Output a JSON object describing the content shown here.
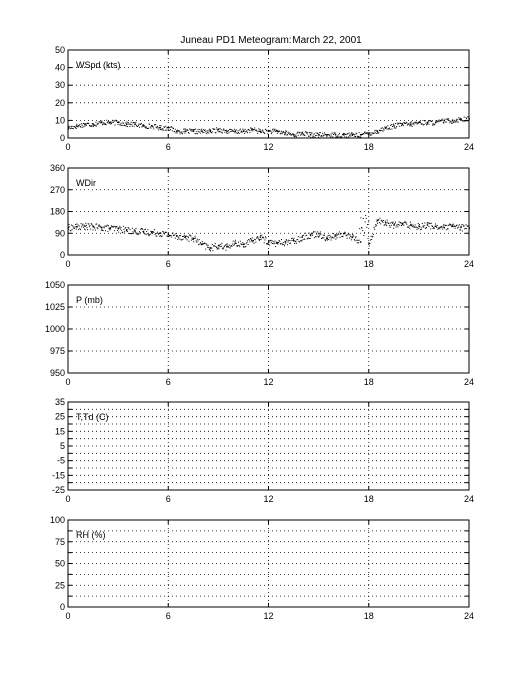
{
  "title": "Juneau PD1 Meteogram:",
  "date": "March 22, 2001",
  "chart_data": [
    {
      "type": "scatter",
      "label": "WSpd (kts)",
      "x_range": [
        0,
        24
      ],
      "x_ticks": [
        "0",
        "6",
        "12",
        "18",
        "24"
      ],
      "ylim": [
        0,
        50
      ],
      "y_ticks": [
        "0",
        "10",
        "20",
        "30",
        "40",
        "50"
      ],
      "grid": true,
      "series": [
        {
          "x": [
            0,
            0.5,
            1,
            1.5,
            2,
            2.5,
            3,
            3.5,
            4,
            4.5,
            5,
            5.5,
            6,
            6.5,
            7,
            7.5,
            8,
            8.5,
            9,
            9.5,
            10,
            10.5,
            11,
            11.5,
            12,
            12.5,
            13,
            13.5,
            14,
            14.5,
            15,
            15.5,
            16,
            16.5,
            17,
            17.5,
            18,
            18.5,
            19,
            19.5,
            20,
            20.5,
            21,
            21.5,
            22,
            22.5,
            23,
            23.5,
            24
          ],
          "y": [
            6,
            7,
            8,
            8,
            9,
            9,
            9,
            8,
            8,
            7,
            7,
            6,
            6,
            4,
            4,
            4,
            4,
            4,
            5,
            4,
            4,
            4,
            5,
            4,
            4,
            4,
            3,
            2,
            3,
            2,
            2,
            2,
            2,
            2,
            2,
            2,
            3,
            4,
            6,
            7,
            8,
            8,
            9,
            9,
            9,
            10,
            10,
            11,
            11
          ]
        }
      ]
    },
    {
      "type": "scatter",
      "label": "WDir",
      "x_range": [
        0,
        24
      ],
      "x_ticks": [
        "0",
        "6",
        "12",
        "18",
        "24"
      ],
      "ylim": [
        0,
        360
      ],
      "y_ticks": [
        "0",
        "90",
        "180",
        "270",
        "360"
      ],
      "grid": true,
      "series": [
        {
          "x": [
            0,
            0.5,
            1,
            1.5,
            2,
            2.5,
            3,
            3.5,
            4,
            4.5,
            5,
            5.5,
            6,
            6.5,
            7,
            7.5,
            8,
            8.5,
            9,
            9.5,
            10,
            10.5,
            11,
            11.5,
            12,
            12.5,
            13,
            13.5,
            14,
            14.5,
            15,
            15.5,
            16,
            16.5,
            17,
            17.5,
            18,
            18.5,
            19,
            19.5,
            20,
            20.5,
            21,
            21.5,
            22,
            22.5,
            23,
            23.5,
            24
          ],
          "y": [
            115,
            118,
            120,
            118,
            115,
            112,
            110,
            105,
            100,
            98,
            95,
            92,
            85,
            80,
            75,
            70,
            45,
            30,
            40,
            35,
            50,
            45,
            60,
            75,
            55,
            50,
            55,
            60,
            75,
            85,
            90,
            70,
            80,
            90,
            75,
            55,
            50,
            145,
            135,
            125,
            130,
            125,
            120,
            125,
            120,
            115,
            120,
            115,
            112
          ]
        }
      ]
    },
    {
      "type": "scatter",
      "label": "P (mb)",
      "x_range": [
        0,
        24
      ],
      "x_ticks": [
        "0",
        "6",
        "12",
        "18",
        "24"
      ],
      "ylim": [
        950,
        1050
      ],
      "y_ticks": [
        "950",
        "975",
        "1000",
        "1025",
        "1050"
      ],
      "grid": true,
      "series": []
    },
    {
      "type": "scatter",
      "label": "T,Td (C)",
      "x_range": [
        0,
        24
      ],
      "x_ticks": [
        "0",
        "6",
        "12",
        "18",
        "24"
      ],
      "ylim": [
        -25,
        35
      ],
      "y_ticks": [
        "-25",
        "-15",
        "-5",
        "5",
        "15",
        "25",
        "35"
      ],
      "y_ticks_minor": [
        "-20",
        "-10",
        "0",
        "10",
        "20",
        "30"
      ],
      "grid": true,
      "series": []
    },
    {
      "type": "scatter",
      "label": "RH (%)",
      "x_range": [
        0,
        24
      ],
      "x_ticks": [
        "0",
        "6",
        "12",
        "18",
        "24"
      ],
      "ylim": [
        0,
        100
      ],
      "y_ticks": [
        "0",
        "25",
        "50",
        "75",
        "100"
      ],
      "y_ticks_minor": [
        "12.5",
        "37.5",
        "62.5",
        "87.5"
      ],
      "grid": true,
      "series": []
    }
  ]
}
